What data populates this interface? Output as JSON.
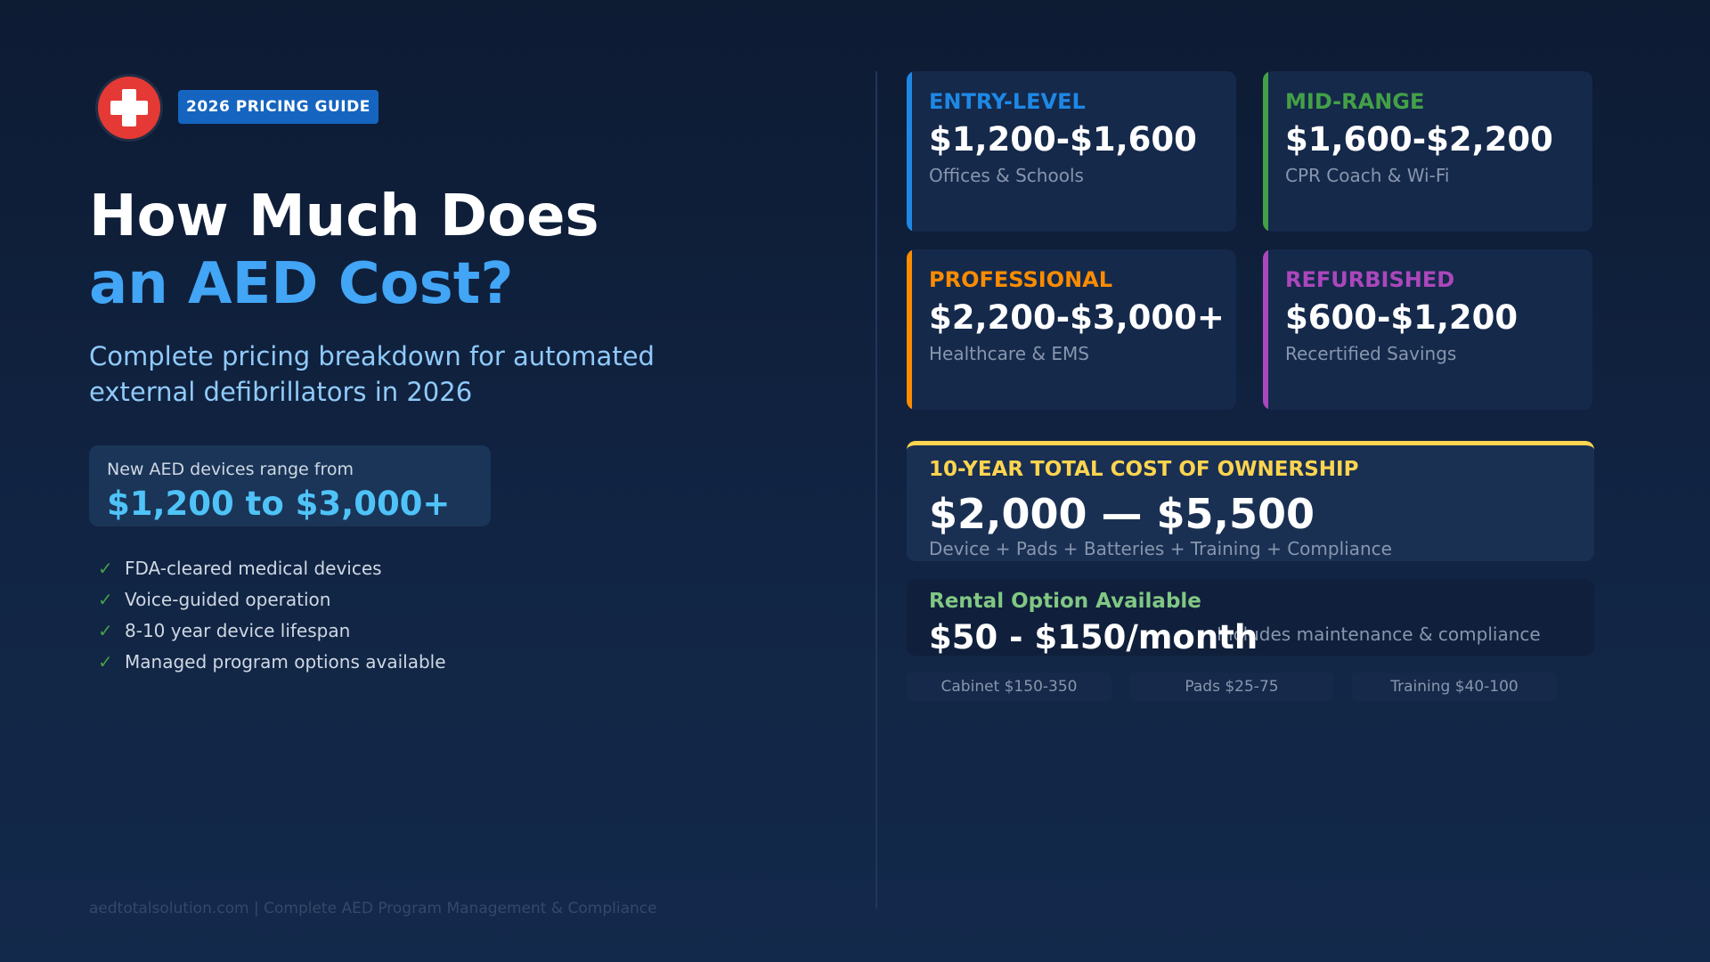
{
  "header": {
    "logo_icon": "medical-cross-icon",
    "badge": "2026 PRICING GUIDE"
  },
  "hero": {
    "title_line1": "How Much Does",
    "title_line2": "an AED Cost?",
    "subtitle": "Complete pricing breakdown for automated external defibrillators in 2026"
  },
  "range": {
    "label": "New AED devices range from",
    "value": "$1,200 to $3,000+"
  },
  "features": [
    "FDA-cleared medical devices",
    "Voice-guided operation",
    "8-10 year device lifespan",
    "Managed program options available"
  ],
  "check_glyph": "✓",
  "footer": {
    "site": "aedtotalsolution.com",
    "separator": "|",
    "tagline": "Complete AED Program Management & Compliance"
  },
  "tiers": [
    {
      "name": "ENTRY-LEVEL",
      "price": "$1,200-$1,600",
      "desc": "Offices & Schools",
      "color": "#1e88e5"
    },
    {
      "name": "MID-RANGE",
      "price": "$1,600-$2,200",
      "desc": "CPR Coach & Wi-Fi",
      "color": "#43a047"
    },
    {
      "name": "PROFESSIONAL",
      "price": "$2,200-$3,000+",
      "desc": "Healthcare & EMS",
      "color": "#fb8c00"
    },
    {
      "name": "REFURBISHED",
      "price": "$600-$1,200",
      "desc": "Recertified Savings",
      "color": "#ab47bc"
    }
  ],
  "tco": {
    "label": "10-YEAR TOTAL COST OF OWNERSHIP",
    "value": "$2,000 — $5,500",
    "sub": "Device + Pads + Batteries + Training + Compliance"
  },
  "rental": {
    "label": "Rental Option Available",
    "value": "$50 - $150/month",
    "note": "Includes maintenance & compliance"
  },
  "chips": [
    "Cabinet $150-350",
    "Pads $25-75",
    "Training $40-100"
  ]
}
